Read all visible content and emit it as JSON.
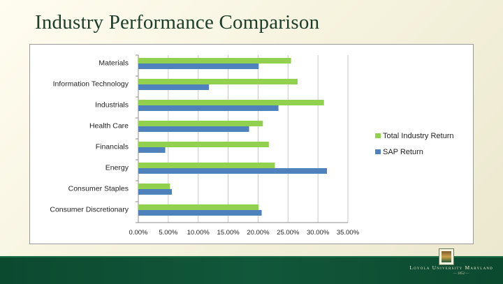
{
  "slide": {
    "title": "Industry Performance Comparison"
  },
  "footer": {
    "university": "Loyola University Maryland",
    "established": "— 1852 —"
  },
  "colors": {
    "total_industry": "#92d050",
    "sap": "#4f81bd"
  },
  "chart_data": {
    "type": "bar",
    "orientation": "horizontal",
    "title": "",
    "xlabel": "",
    "ylabel": "",
    "categories": [
      "Materials",
      "Information Technology",
      "Industrials",
      "Health Care",
      "Financials",
      "Energy",
      "Consumer Staples",
      "Consumer Discretionary"
    ],
    "series": [
      {
        "name": "Total Industry Return",
        "values": [
          25.5,
          26.6,
          31.0,
          20.8,
          21.8,
          22.8,
          5.3,
          20.1
        ]
      },
      {
        "name": "SAP Return",
        "values": [
          20.1,
          11.8,
          23.4,
          18.5,
          4.5,
          31.5,
          5.6,
          20.6
        ]
      }
    ],
    "xlim": [
      0,
      35
    ],
    "xticks": [
      "0.00%",
      "5.00%",
      "10.00%",
      "15.00%",
      "20.00%",
      "25.00%",
      "30.00%",
      "35.00%"
    ],
    "grid": true,
    "legend": "right"
  }
}
